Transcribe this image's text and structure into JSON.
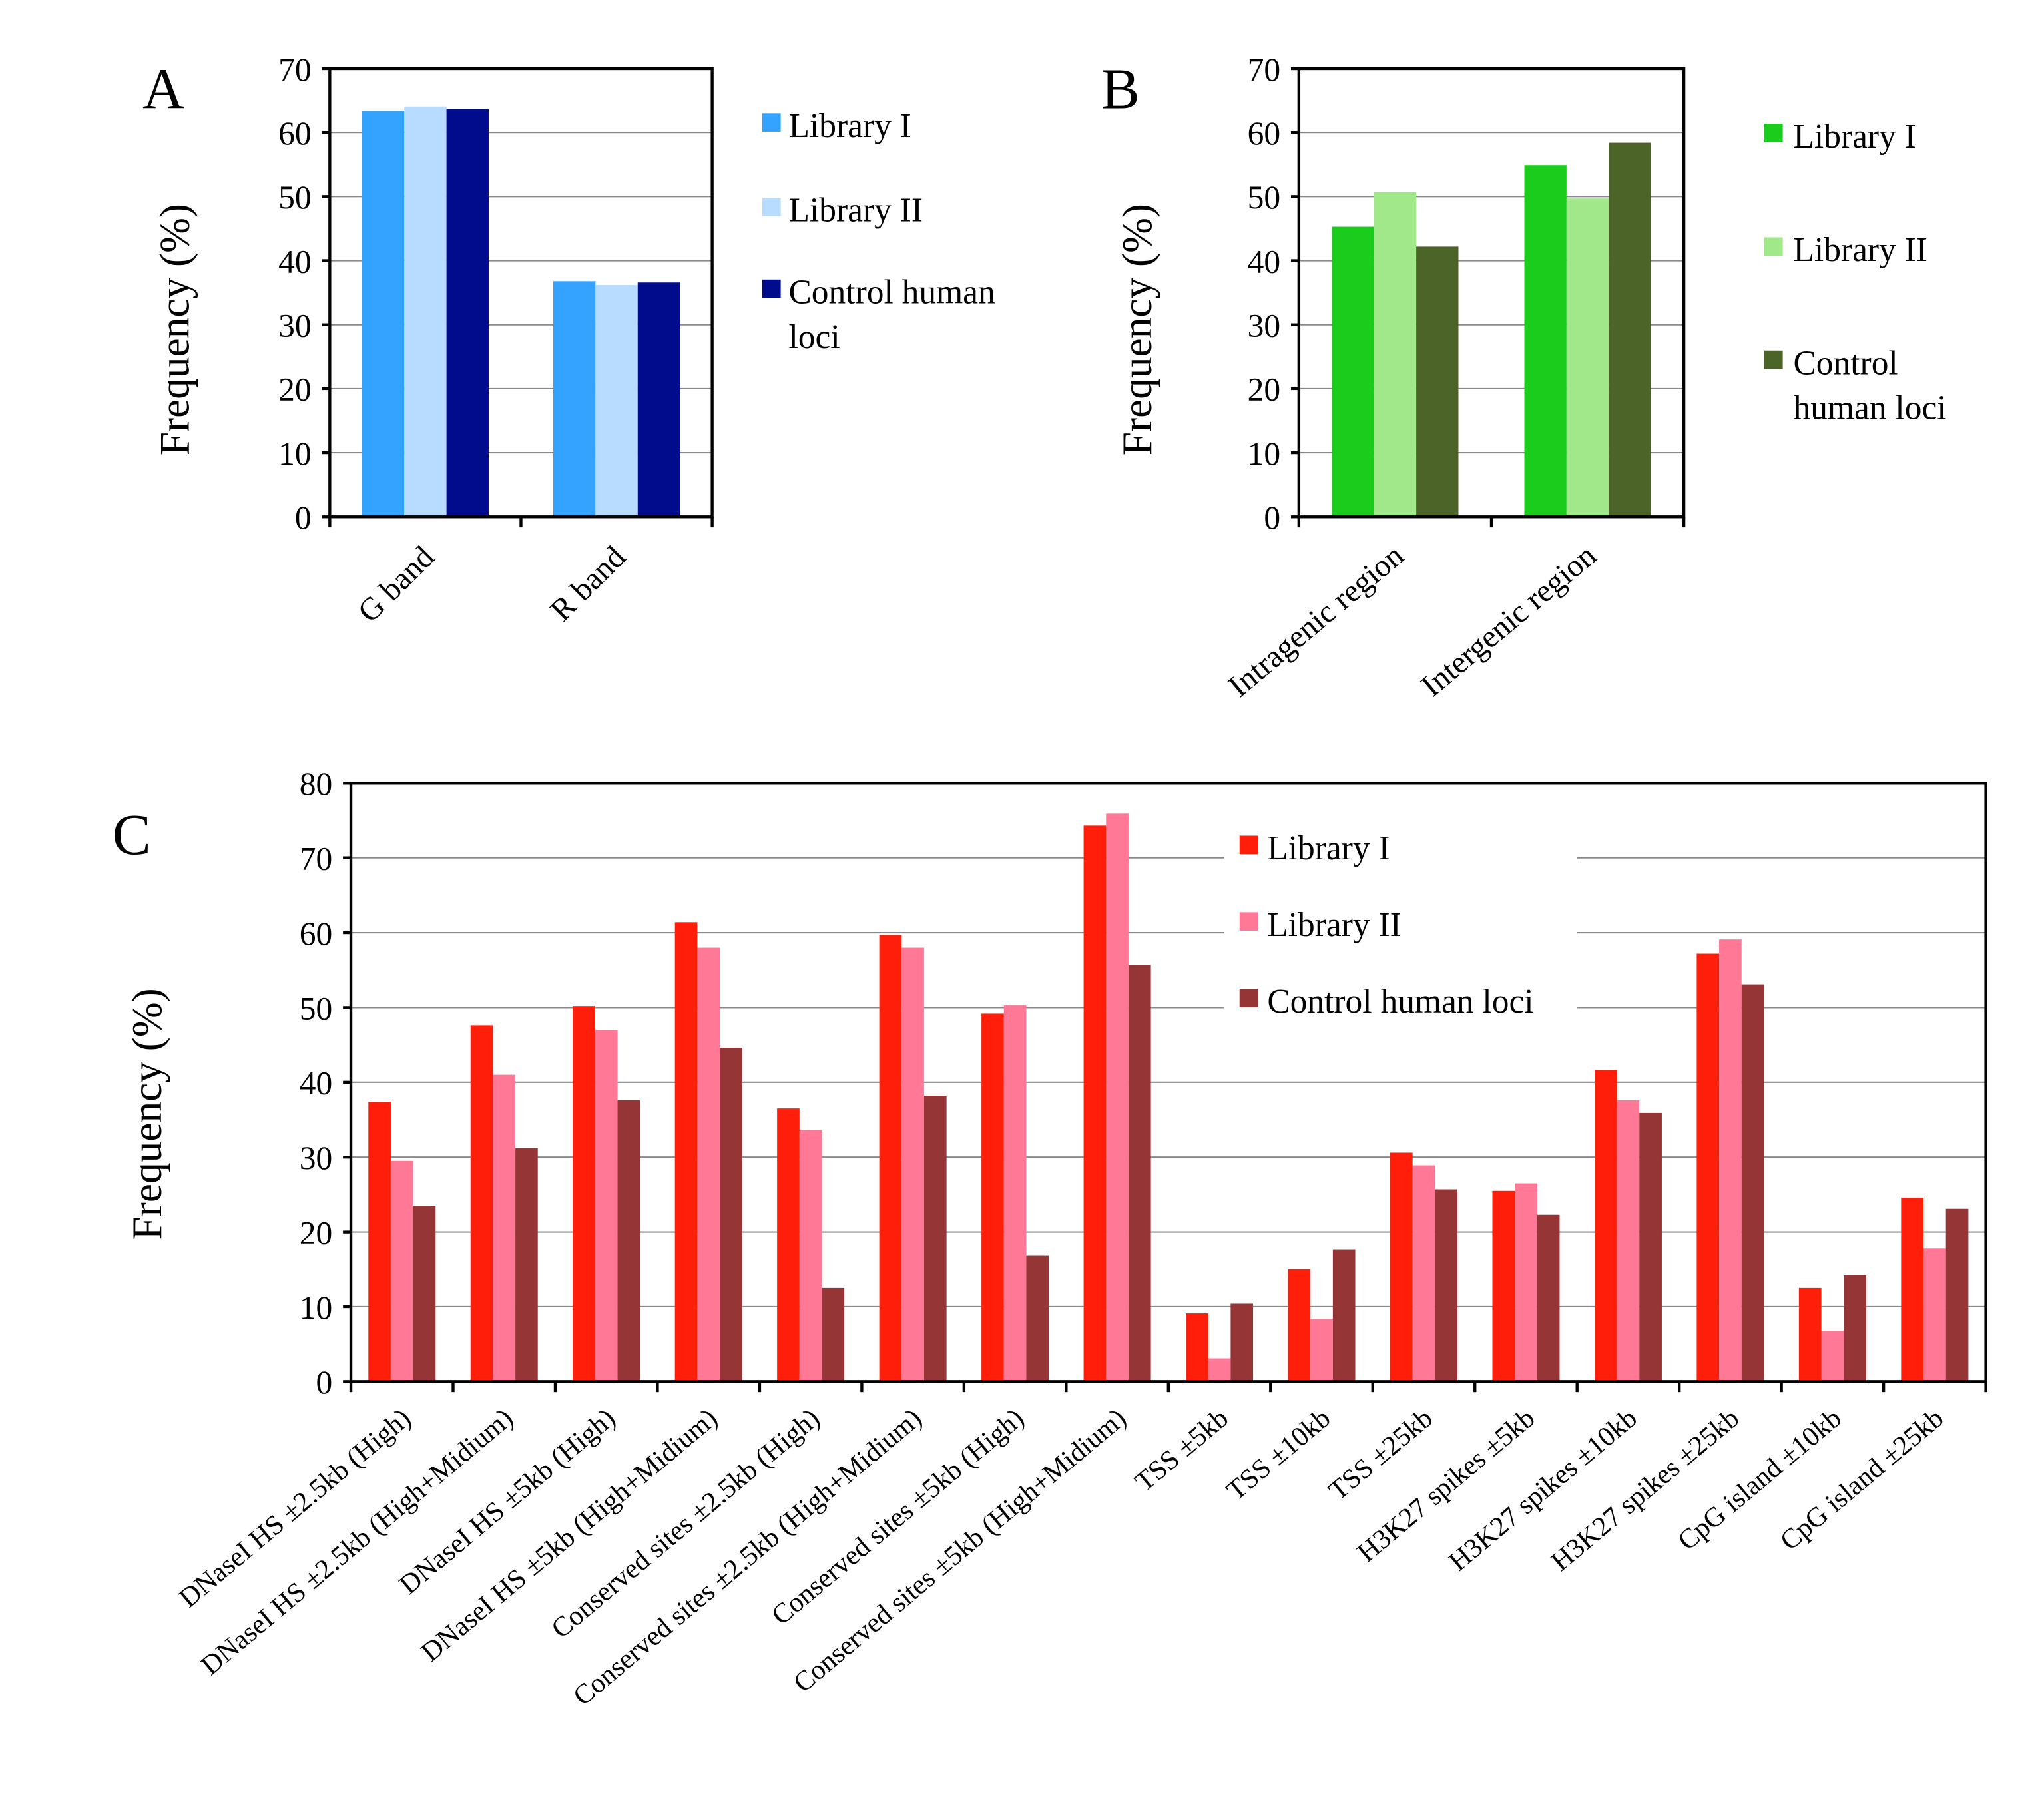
{
  "chart_data": [
    {
      "panel": "A",
      "type": "bar",
      "ylabel": "Frequency (%)",
      "ylim": [
        0,
        70
      ],
      "yticks": [
        0,
        10,
        20,
        30,
        40,
        50,
        60,
        70
      ],
      "grid": true,
      "legend_position": "right",
      "categories": [
        "G band",
        "R band"
      ],
      "series": [
        {
          "name": "Library I",
          "color": "#33a3ff",
          "values": [
            63.4,
            36.8
          ]
        },
        {
          "name": "Library II",
          "color": "#b8dcff",
          "values": [
            64.1,
            36.2
          ]
        },
        {
          "name": "Control human\nloci",
          "color": "#000c8c",
          "values": [
            63.7,
            36.6
          ]
        }
      ]
    },
    {
      "panel": "B",
      "type": "bar",
      "ylabel": "Frequency (%)",
      "ylim": [
        0,
        70
      ],
      "yticks": [
        0,
        10,
        20,
        30,
        40,
        50,
        60,
        70
      ],
      "grid": true,
      "legend_position": "right",
      "categories": [
        "Intragenic region",
        "Intergenic region"
      ],
      "series": [
        {
          "name": "Library I",
          "color": "#1ccc1c",
          "values": [
            45.3,
            54.9
          ]
        },
        {
          "name": "Library II",
          "color": "#a0e88a",
          "values": [
            50.7,
            49.7
          ]
        },
        {
          "name": "Control\nhuman loci",
          "color": "#4d6428",
          "values": [
            42.2,
            58.4
          ]
        }
      ]
    },
    {
      "panel": "C",
      "type": "bar",
      "ylabel": "Frequency (%)",
      "ylim": [
        0,
        80
      ],
      "yticks": [
        0,
        10,
        20,
        30,
        40,
        50,
        60,
        70,
        80
      ],
      "grid": true,
      "legend_position": "top-center",
      "categories": [
        "DNaseI HS ±2.5kb (High)",
        "DNaseI HS ±2.5kb (High+Midium)",
        "DNaseI HS ±5kb (High)",
        "DNaseI HS ±5kb (High+Midium)",
        "Conserved sites ±2.5kb (High)",
        "Conserved sites ±2.5kb (High+Midium)",
        "Conserved sites ±5kb (High)",
        "Conserved sites ±5kb (High+Midium)",
        "TSS ±5kb",
        "TSS ±10kb",
        "TSS ±25kb",
        "H3K27 spikes ±5kb",
        "H3K27 spikes ±10kb",
        "H3K27 spikes ±25kb",
        "CpG island  ±10kb",
        "CpG island  ±25kb"
      ],
      "series": [
        {
          "name": "Library I",
          "color": "#ff1e0a",
          "values": [
            37.4,
            47.6,
            50.2,
            61.4,
            36.5,
            59.7,
            49.2,
            74.3,
            9.1,
            15.0,
            30.6,
            25.5,
            41.6,
            57.2,
            12.5,
            24.6
          ]
        },
        {
          "name": "Library II",
          "color": "#ff7896",
          "values": [
            29.5,
            41.0,
            47.0,
            58.0,
            33.6,
            58.0,
            50.3,
            75.9,
            3.1,
            8.4,
            28.9,
            26.5,
            37.6,
            59.1,
            6.8,
            17.8
          ]
        },
        {
          "name": "Control human loci",
          "color": "#953535",
          "values": [
            23.5,
            31.2,
            37.6,
            44.6,
            12.5,
            38.2,
            16.8,
            55.7,
            10.4,
            17.6,
            25.7,
            22.3,
            35.9,
            53.1,
            14.2,
            23.1
          ]
        }
      ]
    }
  ]
}
